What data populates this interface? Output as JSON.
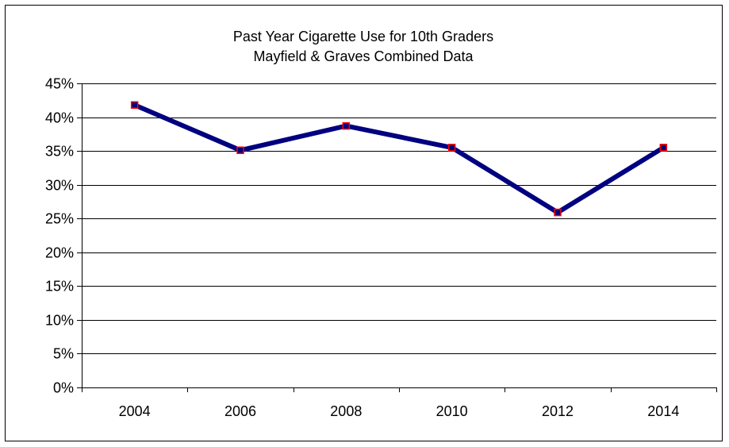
{
  "chart_data": {
    "type": "line",
    "title": "Past Year Cigarette Use for 10th Graders",
    "subtitle": "Mayfield & Graves Combined Data",
    "xlabel": "",
    "ylabel": "",
    "categories": [
      "2004",
      "2006",
      "2008",
      "2010",
      "2012",
      "2014"
    ],
    "series": [
      {
        "values": [
          0.418,
          0.351,
          0.387,
          0.355,
          0.259,
          0.355
        ]
      }
    ],
    "ylim": [
      0,
      0.45
    ],
    "y_ticks": [
      0,
      0.05,
      0.1,
      0.15,
      0.2,
      0.25,
      0.3,
      0.35,
      0.4,
      0.45
    ],
    "y_tick_labels": [
      "0%",
      "5%",
      "10%",
      "15%",
      "20%",
      "25%",
      "30%",
      "35%",
      "40%",
      "45%"
    ],
    "grid": "horizontal",
    "legend": "none",
    "colors": {
      "line": "#000080",
      "marker_fill": "#000080",
      "marker_edge": "#ff0000",
      "grid": "#000000"
    }
  }
}
